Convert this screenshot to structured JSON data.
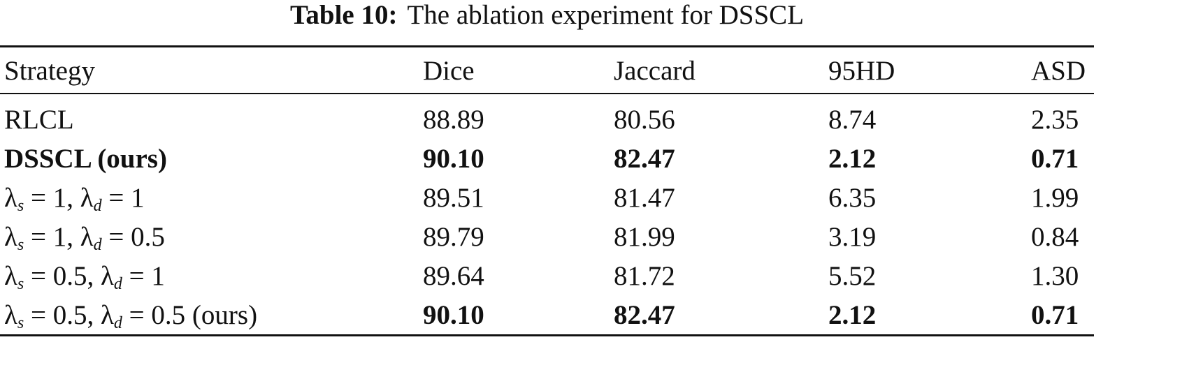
{
  "caption": {
    "label": "Table 10:",
    "text": "The ablation experiment for DSSCL"
  },
  "table": {
    "headers": [
      "Strategy",
      "Dice",
      "Jaccard",
      "95HD",
      "ASD"
    ],
    "rows": [
      {
        "strategy": [
          {
            "text": "RLCL"
          }
        ],
        "values": [
          "88.89",
          "80.56",
          "8.74",
          "2.35"
        ],
        "bold": false
      },
      {
        "strategy": [
          {
            "text": "DSSCL (ours)"
          }
        ],
        "values": [
          "90.10",
          "82.47",
          "2.12",
          "0.71"
        ],
        "bold": true
      },
      {
        "strategy": [
          {
            "text": "λ"
          },
          {
            "sub": "s"
          },
          {
            "text": " = 1, λ"
          },
          {
            "sub": "d"
          },
          {
            "text": " = 1"
          }
        ],
        "values": [
          "89.51",
          "81.47",
          "6.35",
          "1.99"
        ],
        "bold": false
      },
      {
        "strategy": [
          {
            "text": "λ"
          },
          {
            "sub": "s"
          },
          {
            "text": " = 1, λ"
          },
          {
            "sub": "d"
          },
          {
            "text": " = 0.5"
          }
        ],
        "values": [
          "89.79",
          "81.99",
          "3.19",
          "0.84"
        ],
        "bold": false
      },
      {
        "strategy": [
          {
            "text": "λ"
          },
          {
            "sub": "s"
          },
          {
            "text": " = 0.5, λ"
          },
          {
            "sub": "d"
          },
          {
            "text": " = 1"
          }
        ],
        "values": [
          "89.64",
          "81.72",
          "5.52",
          "1.30"
        ],
        "bold": false
      },
      {
        "strategy": [
          {
            "text": "λ"
          },
          {
            "sub": "s"
          },
          {
            "text": " = 0.5, λ"
          },
          {
            "sub": "d"
          },
          {
            "text": " = 0.5 (ours)"
          }
        ],
        "values": [
          "90.10",
          "82.47",
          "2.12",
          "0.71"
        ],
        "bold": "values"
      }
    ]
  }
}
